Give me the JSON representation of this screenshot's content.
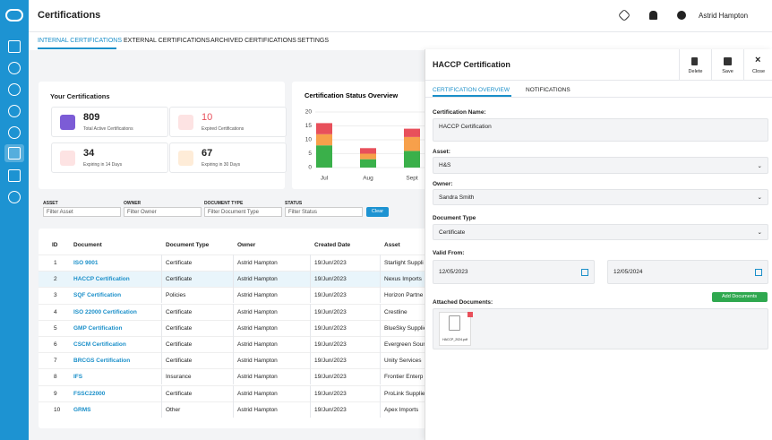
{
  "header": {
    "title": "Certifications",
    "user": "Astrid Hampton"
  },
  "tabs": [
    "INTERNAL CERTIFICATIONS",
    "EXTERNAL CERTIFICATIONS",
    "ARCHIVED CERTIFICATIONS",
    "SETTINGS"
  ],
  "summary": {
    "title": "Your Certifications",
    "cards": [
      {
        "value": 809,
        "label": "Total Active Certifications"
      },
      {
        "value": 10,
        "label": "Expired Certifications"
      },
      {
        "value": 34,
        "label": "Expiring in 14 Days"
      },
      {
        "value": 67,
        "label": "Expiring in 30 Days"
      }
    ]
  },
  "status_chart": {
    "type": "bar",
    "title": "Certification Status Overview",
    "categories": [
      "Jul",
      "Aug",
      "Sept"
    ],
    "series": [
      {
        "color": "#3ab04a",
        "values": [
          8,
          3,
          6
        ]
      },
      {
        "color": "#f7a04b",
        "values": [
          4,
          2,
          5
        ]
      },
      {
        "color": "#e8505b",
        "values": [
          4,
          2,
          3
        ]
      }
    ],
    "ylim": [
      0,
      20
    ],
    "yticks": [
      0,
      5,
      10,
      15,
      20
    ]
  },
  "filters": {
    "labels": [
      "ASSET",
      "OWNER",
      "DOCUMENT TYPE",
      "STATUS"
    ],
    "placeholders": [
      "Filter Asset",
      "Filter Owner",
      "Filter Document Type",
      "Filter Status"
    ],
    "clear": "Clear"
  },
  "table": {
    "columns": [
      "ID",
      "Document",
      "Document Type",
      "Owner",
      "Created Date",
      "Asset"
    ],
    "rows": [
      [
        1,
        "ISO 9001",
        "Certificate",
        "Astrid Hampton",
        "19/Jun/2023",
        "Starlight Suppli"
      ],
      [
        2,
        "HACCP Certification",
        "Certificate",
        "Astrid Hampton",
        "19/Jun/2023",
        "Nexus Imports"
      ],
      [
        3,
        "SQF Certification",
        "Policies",
        "Astrid Hampton",
        "19/Jun/2023",
        "Horizon Partne"
      ],
      [
        4,
        "ISO 22000 Certification",
        "Certificate",
        "Astrid Hampton",
        "19/Jun/2023",
        "Crestline"
      ],
      [
        5,
        "GMP Certification",
        "Certificate",
        "Astrid Hampton",
        "19/Jun/2023",
        "BlueSky Supplie"
      ],
      [
        6,
        "CSCM Certification",
        "Certificate",
        "Astrid Hampton",
        "19/Jun/2023",
        "Evergreen Sour"
      ],
      [
        7,
        "BRCGS Certification",
        "Certificate",
        "Astrid Hampton",
        "19/Jun/2023",
        "Unity Services"
      ],
      [
        8,
        "IFS",
        "Insurance",
        "Astrid Hampton",
        "19/Jun/2023",
        "Frontier Enterp"
      ],
      [
        9,
        "FSSC22000",
        "Certificate",
        "Astrid Hampton",
        "19/Jun/2023",
        "ProLink Supplie"
      ],
      [
        10,
        "GRMS",
        "Other",
        "Astrid Hampton",
        "19/Jun/2023",
        "Apex Imports"
      ]
    ]
  },
  "panel": {
    "title": "HACCP Certification",
    "actions": [
      "Delete",
      "Save",
      "Close"
    ],
    "tabs": [
      "CERTIFICATION OVERVIEW",
      "NOTIFICATIONS"
    ],
    "fields": {
      "name_label": "Certification Name:",
      "name": "HACCP Certification",
      "asset_label": "Asset:",
      "asset": "H&S",
      "owner_label": "Owner:",
      "owner": "Sandra Smith",
      "type_label": "Document Type",
      "type": "Certificate",
      "valid_label": "Valid From:",
      "valid_from": "12/05/2023",
      "valid_to": "12/05/2024"
    },
    "attachments": {
      "label": "Attached Documents:",
      "button": "Add Documents",
      "files": [
        "HACCP_2024.pdf"
      ]
    }
  }
}
